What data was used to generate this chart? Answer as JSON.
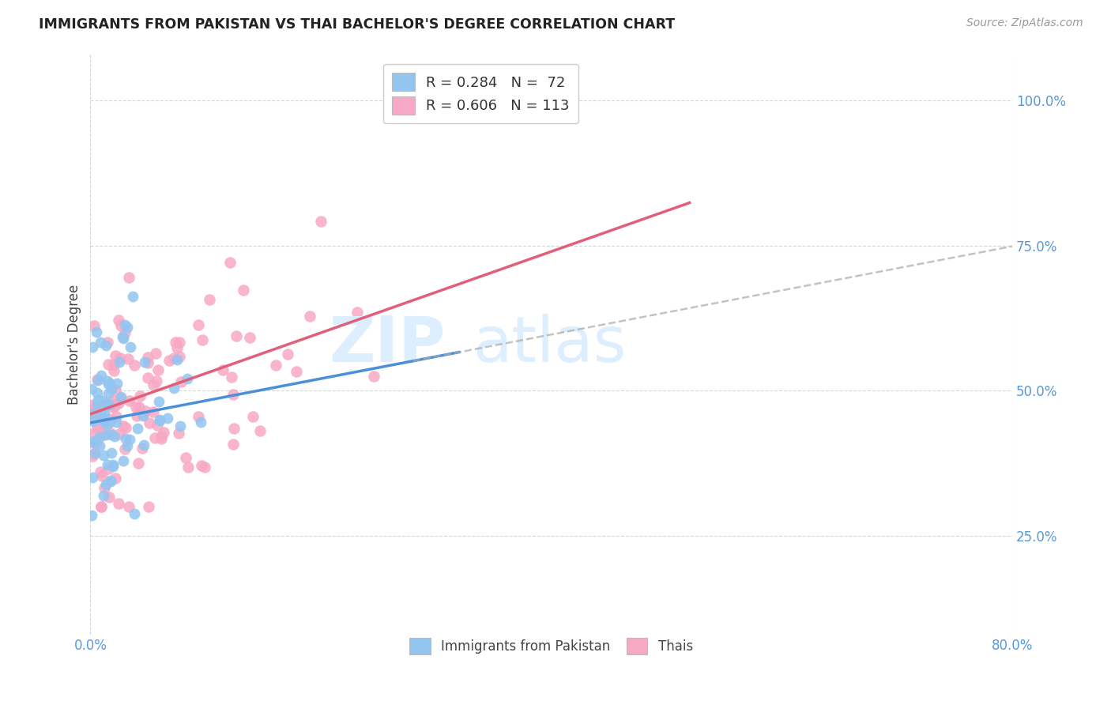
{
  "title": "IMMIGRANTS FROM PAKISTAN VS THAI BACHELOR'S DEGREE CORRELATION CHART",
  "source": "Source: ZipAtlas.com",
  "ylabel": "Bachelor's Degree",
  "xlim": [
    0.0,
    0.8
  ],
  "ylim": [
    0.08,
    1.08
  ],
  "ytick_positions": [
    0.25,
    0.5,
    0.75,
    1.0
  ],
  "ytick_labels": [
    "25.0%",
    "50.0%",
    "75.0%",
    "100.0%"
  ],
  "pakistan_color": "#92c5f0",
  "thai_color": "#f7a8c4",
  "pakistan_line_color": "#4a90d9",
  "thai_line_color": "#e0607a",
  "dash_color": "#aaccee",
  "legend_label_1": "R = 0.284   N =  72",
  "legend_label_2": "R = 0.606   N = 113",
  "legend_footer_1": "Immigrants from Pakistan",
  "legend_footer_2": "Thais",
  "background_color": "#ffffff",
  "pak_intercept": 0.445,
  "pak_slope": 0.38,
  "thai_intercept": 0.46,
  "thai_slope": 0.7
}
